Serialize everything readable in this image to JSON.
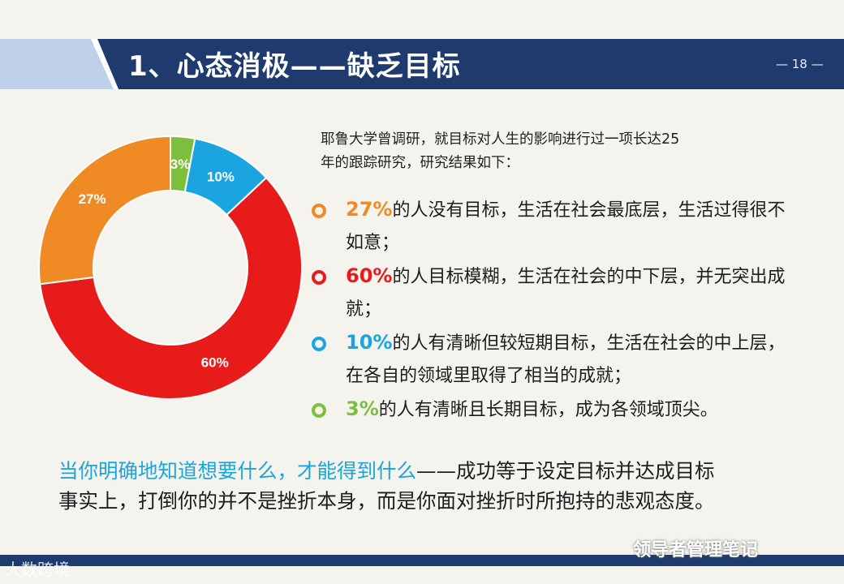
{
  "header": {
    "title": "1、心态消极——缺乏目标",
    "page_number": "— 18 —"
  },
  "intro": {
    "line1": "耶鲁大学曾调研，就目标对人生的影响进行过一项长达25",
    "line2": "年的跟踪研究，研究结果如下："
  },
  "bullets": [
    {
      "pct": "27%",
      "text": "的人没有目标，生活在社会最底层，生活过得很不如意；",
      "color": "#f08a24"
    },
    {
      "pct": "60%",
      "text": "的人目标模糊，生活在社会的中下层，并无突出成就；",
      "color": "#e81b1b"
    },
    {
      "pct": "10%",
      "text": "的人有清晰但较短期目标，生活在社会的中上层，在各自的领域里取得了相当的成就；",
      "color": "#1aa5e0"
    },
    {
      "pct": "3%",
      "text": "的人有清晰且长期目标，成为各领域顶尖。",
      "color": "#7cbf3d"
    }
  ],
  "footer": {
    "highlight": "当你明确地知道想要什么，才能得到什么",
    "rest1": "——成功等于设定目标并达成目标",
    "line2": "事实上，打倒你的并不是挫折本身，而是你面对挫折时所抱持的悲观态度。"
  },
  "watermarks": {
    "left": "大数跨境",
    "right": "领导者管理笔记"
  },
  "colors": {
    "title_bar": "#1f3a6e",
    "accent_light": "#2b5aa8"
  },
  "chart_data": {
    "type": "pie",
    "donut": true,
    "slices": [
      {
        "label": "3%",
        "value": 3,
        "color": "#7cbf3d"
      },
      {
        "label": "10%",
        "value": 10,
        "color": "#1aa5e0"
      },
      {
        "label": "60%",
        "value": 60,
        "color": "#e81b1b"
      },
      {
        "label": "27%",
        "value": 27,
        "color": "#f08a24"
      }
    ]
  }
}
